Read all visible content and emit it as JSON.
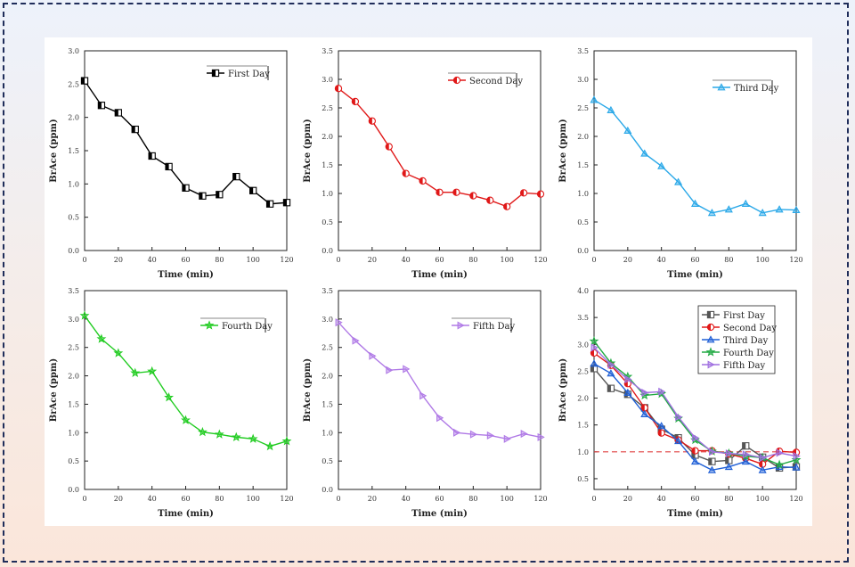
{
  "chart_data": [
    {
      "type": "line",
      "xlabel": "Time (min)",
      "ylabel": "BrAce (ppm)",
      "xlim": [
        0,
        120
      ],
      "ylim": [
        0,
        3.0
      ],
      "xticks": [
        0,
        20,
        40,
        60,
        80,
        100,
        120
      ],
      "yticks": [
        0.0,
        0.5,
        1.0,
        1.5,
        2.0,
        2.5,
        3.0
      ],
      "x": [
        0,
        10,
        20,
        30,
        40,
        50,
        60,
        70,
        80,
        90,
        100,
        110,
        120
      ],
      "legend_position": "top-right",
      "series": [
        {
          "name": "First Day",
          "color": "#000000",
          "marker": "square",
          "values": [
            2.55,
            2.18,
            2.07,
            1.82,
            1.42,
            1.26,
            0.94,
            0.82,
            0.84,
            1.11,
            0.9,
            0.7,
            0.72
          ]
        }
      ]
    },
    {
      "type": "line",
      "xlabel": "Time (min)",
      "ylabel": "BrAce (ppm)",
      "xlim": [
        0,
        120
      ],
      "ylim": [
        0,
        3.5
      ],
      "xticks": [
        0,
        20,
        40,
        60,
        80,
        100,
        120
      ],
      "yticks": [
        0.0,
        0.5,
        1.0,
        1.5,
        2.0,
        2.5,
        3.0,
        3.5
      ],
      "x": [
        0,
        10,
        20,
        30,
        40,
        50,
        60,
        70,
        80,
        90,
        100,
        110,
        120
      ],
      "legend_position": "top-right",
      "series": [
        {
          "name": "Second Day",
          "color": "#e01818",
          "marker": "circle",
          "values": [
            2.84,
            2.61,
            2.27,
            1.82,
            1.35,
            1.22,
            1.02,
            1.02,
            0.96,
            0.88,
            0.77,
            1.01,
            0.99
          ]
        }
      ]
    },
    {
      "type": "line",
      "xlabel": "Time (min)",
      "ylabel": "BrAce (ppm)",
      "xlim": [
        0,
        120
      ],
      "ylim": [
        0,
        3.5
      ],
      "xticks": [
        0,
        20,
        40,
        60,
        80,
        100,
        120
      ],
      "yticks": [
        0.0,
        0.5,
        1.0,
        1.5,
        2.0,
        2.5,
        3.0,
        3.5
      ],
      "x": [
        0,
        10,
        20,
        30,
        40,
        50,
        60,
        70,
        80,
        90,
        100,
        110,
        120
      ],
      "legend_position": "top-right",
      "series": [
        {
          "name": "Third Day",
          "color": "#2aa8e8",
          "marker": "triangle-up",
          "values": [
            2.64,
            2.46,
            2.1,
            1.7,
            1.48,
            1.2,
            0.82,
            0.66,
            0.72,
            0.82,
            0.66,
            0.72,
            0.71
          ]
        }
      ]
    },
    {
      "type": "line",
      "xlabel": "Time (min)",
      "ylabel": "BrAce (ppm)",
      "xlim": [
        0,
        120
      ],
      "ylim": [
        0,
        3.5
      ],
      "xticks": [
        0,
        20,
        40,
        60,
        80,
        100,
        120
      ],
      "yticks": [
        0.0,
        0.5,
        1.0,
        1.5,
        2.0,
        2.5,
        3.0,
        3.5
      ],
      "x": [
        0,
        10,
        20,
        30,
        40,
        50,
        60,
        70,
        80,
        90,
        100,
        110,
        120
      ],
      "legend_position": "top-right",
      "series": [
        {
          "name": "Fourth Day",
          "color": "#22cc22",
          "marker": "star",
          "values": [
            3.06,
            2.65,
            2.4,
            2.05,
            2.08,
            1.62,
            1.22,
            1.01,
            0.97,
            0.92,
            0.89,
            0.76,
            0.85
          ]
        }
      ]
    },
    {
      "type": "line",
      "xlabel": "Time (min)",
      "ylabel": "BrAce (ppm)",
      "xlim": [
        0,
        120
      ],
      "ylim": [
        0,
        3.5
      ],
      "xticks": [
        0,
        20,
        40,
        60,
        80,
        100,
        120
      ],
      "yticks": [
        0.0,
        0.5,
        1.0,
        1.5,
        2.0,
        2.5,
        3.0,
        3.5
      ],
      "x": [
        0,
        10,
        20,
        30,
        40,
        50,
        60,
        70,
        80,
        90,
        100,
        110,
        120
      ],
      "legend_position": "top-right",
      "series": [
        {
          "name": "Fifth Day",
          "color": "#b07ae6",
          "marker": "triangle-right",
          "values": [
            2.94,
            2.62,
            2.35,
            2.1,
            2.12,
            1.65,
            1.26,
            1.0,
            0.97,
            0.95,
            0.89,
            0.98,
            0.92
          ]
        }
      ]
    },
    {
      "type": "line",
      "xlabel": "Time (min)",
      "ylabel": "BrAce (ppm)",
      "xlim": [
        0,
        120
      ],
      "ylim": [
        0.3,
        4.0
      ],
      "xticks": [
        0,
        20,
        40,
        60,
        80,
        100,
        120
      ],
      "yticks": [
        0.5,
        1.0,
        1.5,
        2.0,
        2.5,
        3.0,
        3.5,
        4.0
      ],
      "x": [
        0,
        10,
        20,
        30,
        40,
        50,
        60,
        70,
        80,
        90,
        100,
        110,
        120
      ],
      "legend_position": "top-right",
      "reference_line": {
        "y": 1.0,
        "color": "#e04040",
        "style": "dashed"
      },
      "series": [
        {
          "name": "First Day",
          "color": "#555555",
          "marker": "square",
          "values": [
            2.55,
            2.18,
            2.07,
            1.82,
            1.42,
            1.26,
            0.94,
            0.82,
            0.84,
            1.11,
            0.9,
            0.7,
            0.72
          ]
        },
        {
          "name": "Second Day",
          "color": "#e01818",
          "marker": "circle",
          "values": [
            2.84,
            2.61,
            2.27,
            1.82,
            1.35,
            1.22,
            1.02,
            1.02,
            0.96,
            0.88,
            0.77,
            1.01,
            0.99
          ]
        },
        {
          "name": "Third Day",
          "color": "#1f5fd6",
          "marker": "triangle-up",
          "values": [
            2.64,
            2.46,
            2.1,
            1.7,
            1.48,
            1.2,
            0.82,
            0.66,
            0.72,
            0.82,
            0.66,
            0.72,
            0.71
          ]
        },
        {
          "name": "Fourth Day",
          "color": "#22aa44",
          "marker": "star",
          "values": [
            3.06,
            2.65,
            2.4,
            2.05,
            2.08,
            1.62,
            1.22,
            1.01,
            0.97,
            0.92,
            0.89,
            0.76,
            0.85
          ]
        },
        {
          "name": "Fifth Day",
          "color": "#a070e0",
          "marker": "triangle-right",
          "values": [
            2.94,
            2.62,
            2.35,
            2.1,
            2.12,
            1.65,
            1.26,
            1.0,
            0.97,
            0.95,
            0.89,
            0.98,
            0.92
          ]
        }
      ]
    }
  ]
}
